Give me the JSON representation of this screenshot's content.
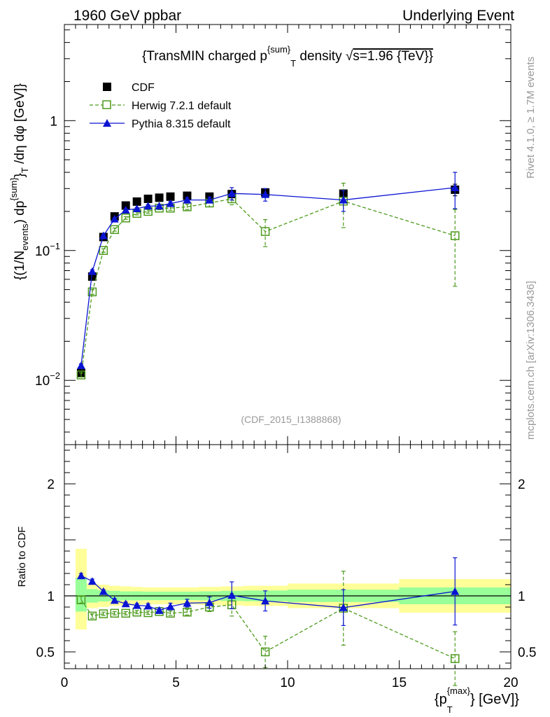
{
  "header": {
    "left": "1960 GeV ppbar",
    "right": "Underlying Event"
  },
  "side_labels": {
    "rivet": "Rivet 4.1.0, ≥ 1.7M events",
    "mcplots": "mcplots.cern.ch [arXiv:1306.3436]"
  },
  "colors": {
    "cdf": "#000000",
    "herwig": "#4c9a1c",
    "pythia": "#0a14d2",
    "band_yellow": "#ffff99",
    "band_green": "#99ff99"
  },
  "chart_data": [
    {
      "type": "scatter",
      "panel": "main",
      "title": "{TransMIN charged p^{sum}_T density √s=1.96 {TeV}}",
      "title_parts": {
        "a": "{TransMIN charged p",
        "sup": "{sum}",
        "sub": "T",
        "b": " density √",
        "c": "s=1.96 {TeV}}"
      },
      "ylabel": "{(1/N_events) dp^{sum}_T /dη dφ [GeV]}",
      "ylabel_parts": {
        "a": "{(1/N",
        "sub1": "events",
        "b": ") dp",
        "sup": "{sum}",
        "c": "}",
        "sub2": "T",
        "d": " /dη  dφ [GeV]}"
      },
      "xlabel": "{p_T^{max}} [GeV]}",
      "xlim": [
        0,
        20
      ],
      "ylim": [
        0.0032,
        5.5
      ],
      "yscale": "log",
      "yticks": [
        {
          "value": 0.01,
          "base": "10",
          "exp": "−2"
        },
        {
          "value": 0.1,
          "base": "10",
          "exp": "−1"
        },
        {
          "value": 1,
          "base": "1",
          "exp": ""
        }
      ],
      "watermark": "(CDF_2015_I1388868)",
      "legend": {
        "placement": "top-left",
        "entries": [
          "CDF",
          "Herwig 7.2.1 default",
          "Pythia 8.315 default"
        ]
      },
      "x": [
        0.75,
        1.25,
        1.75,
        2.25,
        2.75,
        3.25,
        3.75,
        4.25,
        4.75,
        5.5,
        6.5,
        7.5,
        9.0,
        12.5,
        17.5
      ],
      "series": [
        {
          "name": "CDF",
          "marker": "square-filled",
          "values": [
            0.0114,
            0.063,
            0.127,
            0.183,
            0.222,
            0.238,
            0.25,
            0.255,
            0.26,
            0.264,
            0.26,
            0.272,
            0.28,
            0.274,
            0.294
          ],
          "errors": [
            0.0005,
            0.002,
            0.003,
            0.004,
            0.004,
            0.004,
            0.005,
            0.006,
            0.006,
            0.007,
            0.008,
            0.01,
            0.014,
            0.018,
            0.03
          ]
        },
        {
          "name": "Herwig 7.2.1 default",
          "marker": "square-open",
          "line": "dashed",
          "values": [
            0.011,
            0.048,
            0.1,
            0.145,
            0.178,
            0.193,
            0.2,
            0.212,
            0.212,
            0.217,
            0.232,
            0.25,
            0.14,
            0.24,
            0.13
          ],
          "errors": [
            0.0004,
            0.002,
            0.003,
            0.004,
            0.004,
            0.005,
            0.006,
            0.006,
            0.008,
            0.01,
            0.015,
            0.025,
            0.033,
            0.09,
            0.077
          ]
        },
        {
          "name": "Pythia 8.315 default",
          "marker": "triangle-filled",
          "line": "solid",
          "values": [
            0.013,
            0.069,
            0.13,
            0.175,
            0.205,
            0.21,
            0.22,
            0.22,
            0.23,
            0.245,
            0.245,
            0.275,
            0.27,
            0.245,
            0.305
          ],
          "errors": [
            0.0004,
            0.002,
            0.003,
            0.004,
            0.004,
            0.004,
            0.005,
            0.006,
            0.008,
            0.01,
            0.013,
            0.03,
            0.03,
            0.045,
            0.095
          ]
        }
      ]
    },
    {
      "type": "scatter",
      "panel": "ratio",
      "ylabel": "Ratio to CDF",
      "xlim": [
        0,
        20
      ],
      "ylim": [
        0.35,
        2.35
      ],
      "xticks": [
        0,
        5,
        10,
        15,
        20
      ],
      "yticks": [
        0.5,
        1,
        2
      ],
      "reference_line": 1,
      "bands": [
        {
          "x0": 0.5,
          "x1": 1.0,
          "yellow": [
            0.7,
            1.42
          ],
          "green": [
            0.86,
            1.16
          ]
        },
        {
          "x0": 1.0,
          "x1": 1.5,
          "yellow": [
            0.89,
            1.11
          ],
          "green": [
            0.94,
            1.06
          ]
        },
        {
          "x0": 1.5,
          "x1": 2.0,
          "yellow": [
            0.9,
            1.1
          ],
          "green": [
            0.95,
            1.05
          ]
        },
        {
          "x0": 2.0,
          "x1": 2.5,
          "yellow": [
            0.91,
            1.09
          ],
          "green": [
            0.955,
            1.045
          ]
        },
        {
          "x0": 2.5,
          "x1": 3.0,
          "yellow": [
            0.915,
            1.085
          ],
          "green": [
            0.96,
            1.04
          ]
        },
        {
          "x0": 3.0,
          "x1": 3.5,
          "yellow": [
            0.92,
            1.08
          ],
          "green": [
            0.96,
            1.04
          ]
        },
        {
          "x0": 3.5,
          "x1": 4.0,
          "yellow": [
            0.925,
            1.075
          ],
          "green": [
            0.962,
            1.038
          ]
        },
        {
          "x0": 4.0,
          "x1": 4.5,
          "yellow": [
            0.925,
            1.075
          ],
          "green": [
            0.962,
            1.038
          ]
        },
        {
          "x0": 4.5,
          "x1": 5.0,
          "yellow": [
            0.925,
            1.075
          ],
          "green": [
            0.962,
            1.038
          ]
        },
        {
          "x0": 5.0,
          "x1": 6.0,
          "yellow": [
            0.925,
            1.075
          ],
          "green": [
            0.962,
            1.038
          ]
        },
        {
          "x0": 6.0,
          "x1": 7.0,
          "yellow": [
            0.92,
            1.08
          ],
          "green": [
            0.96,
            1.04
          ]
        },
        {
          "x0": 7.0,
          "x1": 8.0,
          "yellow": [
            0.915,
            1.085
          ],
          "green": [
            0.955,
            1.045
          ]
        },
        {
          "x0": 8.0,
          "x1": 10.0,
          "yellow": [
            0.91,
            1.09
          ],
          "green": [
            0.952,
            1.048
          ]
        },
        {
          "x0": 10.0,
          "x1": 15.0,
          "yellow": [
            0.89,
            1.11
          ],
          "green": [
            0.945,
            1.055
          ]
        },
        {
          "x0": 15.0,
          "x1": 20.0,
          "yellow": [
            0.85,
            1.15
          ],
          "green": [
            0.925,
            1.075
          ]
        }
      ],
      "series": [
        {
          "name": "Herwig 7.2.1 default",
          "values": [
            0.965,
            0.82,
            0.84,
            0.845,
            0.845,
            0.855,
            0.85,
            0.86,
            0.845,
            0.855,
            0.9,
            0.92,
            0.5,
            0.89,
            0.44
          ],
          "errors": [
            0.03,
            0.02,
            0.015,
            0.015,
            0.015,
            0.015,
            0.015,
            0.018,
            0.02,
            0.025,
            0.04,
            0.1,
            0.14,
            0.33,
            0.24
          ]
        },
        {
          "name": "Pythia 8.315 default",
          "values": [
            1.18,
            1.13,
            1.04,
            0.96,
            0.93,
            0.915,
            0.91,
            0.87,
            0.905,
            0.935,
            0.94,
            1.005,
            0.955,
            0.895,
            1.04
          ],
          "errors": [
            0.02,
            0.02,
            0.015,
            0.015,
            0.015,
            0.015,
            0.02,
            0.022,
            0.03,
            0.035,
            0.05,
            0.12,
            0.09,
            0.16,
            0.3
          ]
        }
      ]
    }
  ]
}
